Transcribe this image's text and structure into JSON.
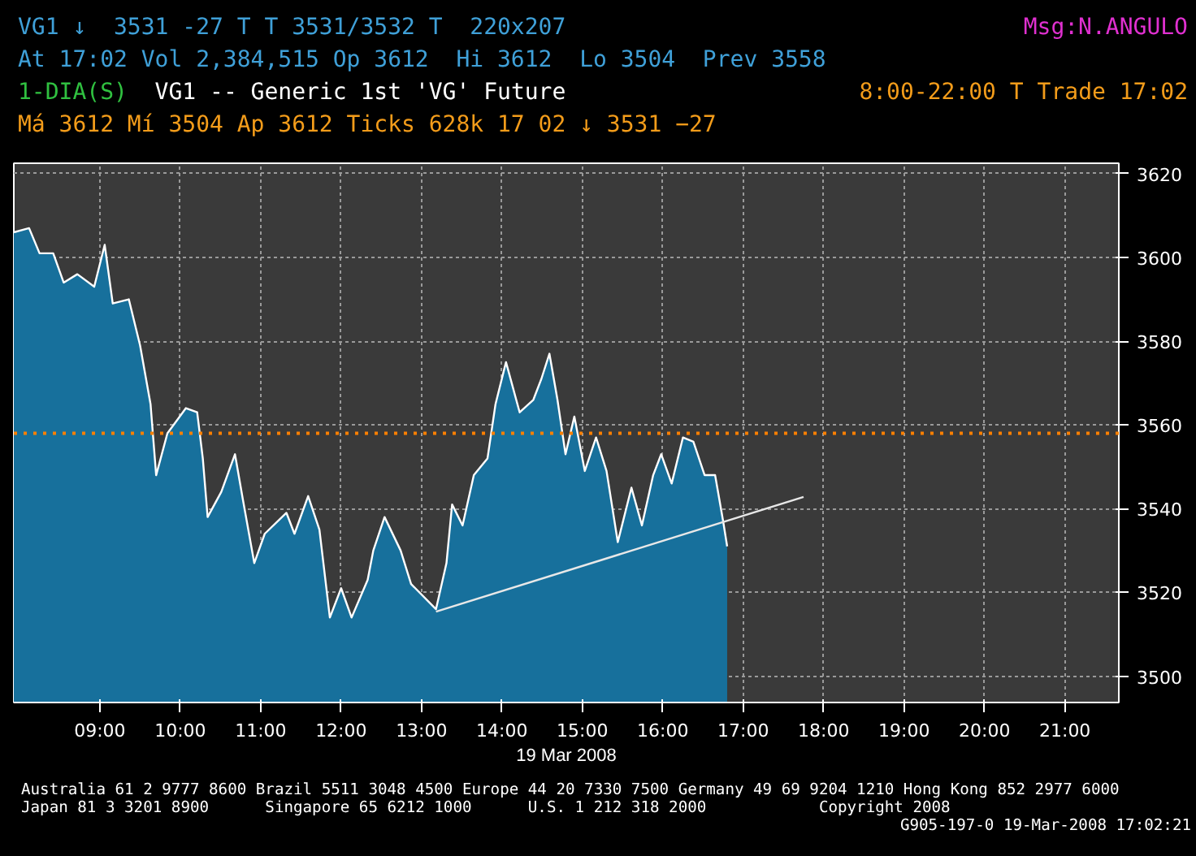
{
  "chart_data": {
    "type": "area",
    "title": "VG1 -- Generic 1st 'VG' Future",
    "xlabel": "19 Mar 2008",
    "annotations": [
      "VG1 ↓  3531 -27 T T 3531/3532 T  220x207",
      "Msg:N.ANGULO",
      "At 17:02 Vol 2,384,515 Op 3612  Hi 3612  Lo 3504  Prev 3558",
      "1-DIA(S)",
      "8:00-22:00 T Trade 17:02",
      "Má 3612 Mí 3504 Ap 3612 Ticks 628k 17 02 ↓ 3531 −27",
      "Australia 61 2 9777 8600 Brazil 5511 3048 4500 Europe 44 20 7330 7500 Germany 49 69 9204 1210 Hong Kong 852 2977 6000",
      "Japan 81 3 3201 8900      Singapore 65 6212 1000      U.S. 1 212 318 2000            Copyright 2008",
      "G905-197-0 19-Mar-2008 17:02:21"
    ],
    "xlim": [
      7.93,
      21.67
    ],
    "ylim": [
      3493.7,
      3622.5
    ],
    "xticks": [
      {
        "value": 9,
        "label": "09:00"
      },
      {
        "value": 10,
        "label": "10:00"
      },
      {
        "value": 11,
        "label": "11:00"
      },
      {
        "value": 12,
        "label": "12:00"
      },
      {
        "value": 13,
        "label": "13:00"
      },
      {
        "value": 14,
        "label": "14:00"
      },
      {
        "value": 15,
        "label": "15:00"
      },
      {
        "value": 16,
        "label": "16:00"
      },
      {
        "value": 17,
        "label": "17:00"
      },
      {
        "value": 18,
        "label": "18:00"
      },
      {
        "value": 19,
        "label": "19:00"
      },
      {
        "value": 20,
        "label": "20:00"
      },
      {
        "value": 21,
        "label": "21:00"
      }
    ],
    "yticks": [
      3500,
      3520,
      3540,
      3560,
      3580,
      3600,
      3620
    ],
    "grid": true,
    "line_style": "solid",
    "ref_lines": [
      {
        "axis": "y",
        "value": 3558,
        "color": "#ff8000",
        "line_style": "dotted"
      }
    ],
    "series": [
      {
        "color": "#17709c",
        "x": [
          7.93,
          8.12,
          8.25,
          8.42,
          8.55,
          8.72,
          8.93,
          9.06,
          9.16,
          9.36,
          9.5,
          9.63,
          9.7,
          9.84,
          10.07,
          10.21,
          10.28,
          10.34,
          10.51,
          10.68,
          10.78,
          10.92,
          11.05,
          11.32,
          11.42,
          11.59,
          11.73,
          11.86,
          12.0,
          12.13,
          12.33,
          12.4,
          12.54,
          12.74,
          12.87,
          13.18,
          13.31,
          13.38,
          13.51,
          13.65,
          13.82,
          13.92,
          14.05,
          14.22,
          14.39,
          14.49,
          14.59,
          14.69,
          14.79,
          14.9,
          15.03,
          15.17,
          15.3,
          15.44,
          15.61,
          15.74,
          15.88,
          15.98,
          16.11,
          16.25,
          16.38,
          16.52,
          16.65,
          16.75,
          16.8
        ],
        "values": [
          3606,
          3607,
          3601,
          3601,
          3594,
          3596,
          3593,
          3603,
          3589,
          3590,
          3579,
          3565,
          3548,
          3558,
          3564,
          3563,
          3552,
          3538,
          3544,
          3553,
          3542,
          3527,
          3534,
          3539,
          3534,
          3543,
          3535,
          3514,
          3521,
          3514,
          3523,
          3530,
          3538,
          3530,
          3522,
          3516,
          3527,
          3541,
          3536,
          3548,
          3552,
          3565,
          3575,
          3563,
          3566,
          3571,
          3577,
          3566,
          3553,
          3562,
          3549,
          3557,
          3549,
          3532,
          3545,
          3536,
          3548,
          3553,
          3546,
          3557,
          3556,
          3548,
          3548,
          3537,
          3531
        ]
      },
      {
        "type": "line",
        "color": "#e8e8e8",
        "x": [
          13.18,
          17.75
        ],
        "values": [
          3515.4,
          3542.8
        ]
      }
    ]
  }
}
